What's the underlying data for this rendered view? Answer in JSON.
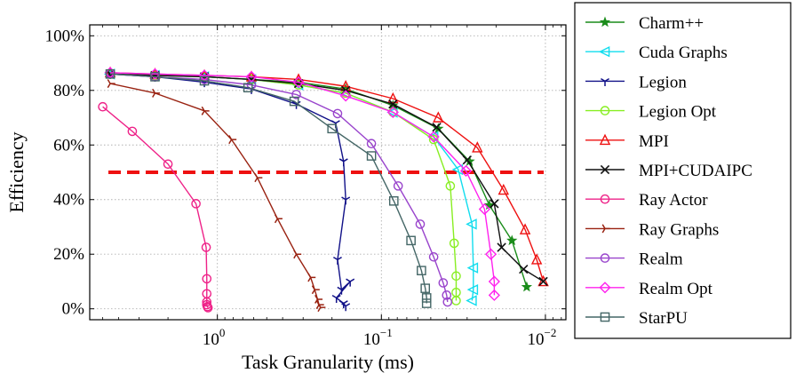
{
  "chart_data": {
    "type": "line",
    "title": "",
    "xlabel": "Task Granularity (ms)",
    "ylabel": "Efficiency",
    "xscale": "log",
    "x_reversed": true,
    "xlim": [
      6.0,
      0.0075
    ],
    "ylim": [
      -4,
      104
    ],
    "grid": true,
    "legend_position": "outside-right",
    "x_ticks": [
      {
        "value": 1,
        "base": "10",
        "exp": "0"
      },
      {
        "value": 0.1,
        "base": "10",
        "exp": "−1"
      },
      {
        "value": 0.01,
        "base": "10",
        "exp": "−2"
      }
    ],
    "y_ticks": [
      {
        "value": 0,
        "label": "0%"
      },
      {
        "value": 20,
        "label": "20%"
      },
      {
        "value": 40,
        "label": "40%"
      },
      {
        "value": 60,
        "label": "60%"
      },
      {
        "value": 80,
        "label": "80%"
      },
      {
        "value": 100,
        "label": "100%"
      }
    ],
    "threshold": {
      "value": 50,
      "color": "#ee1111"
    },
    "series": [
      {
        "name": "Charm++",
        "color": "#1a8c1a",
        "marker": "star",
        "x": [
          4.5,
          2.4,
          1.2,
          0.62,
          0.32,
          0.165,
          0.085,
          0.045,
          0.029,
          0.022,
          0.016,
          0.013
        ],
        "y": [
          86,
          85.5,
          85,
          84,
          83,
          80.5,
          74.5,
          66,
          54,
          38,
          25,
          8
        ]
      },
      {
        "name": "Cuda Graphs",
        "color": "#11ddee",
        "marker": "triangle-left",
        "x": [
          4.5,
          2.4,
          1.2,
          0.62,
          0.32,
          0.165,
          0.085,
          0.048,
          0.034,
          0.028,
          0.0275,
          0.0275,
          0.028
        ],
        "y": [
          86,
          85.5,
          85,
          84,
          82,
          79,
          72,
          63,
          51,
          31,
          15,
          7,
          3
        ]
      },
      {
        "name": "Legion",
        "color": "#111188",
        "marker": "tri-down",
        "x": [
          4.5,
          2.4,
          1.2,
          0.62,
          0.33,
          0.19,
          0.17,
          0.165,
          0.185,
          0.175,
          0.155,
          0.188,
          0.17,
          0.165
        ],
        "y": [
          86,
          85,
          83,
          80.5,
          75,
          68,
          54,
          40,
          18,
          7,
          10,
          4,
          2,
          1
        ]
      },
      {
        "name": "Legion Opt",
        "color": "#88ee22",
        "marker": "circle",
        "x": [
          4.5,
          2.4,
          1.2,
          0.62,
          0.32,
          0.165,
          0.085,
          0.048,
          0.038,
          0.036,
          0.035,
          0.035,
          0.035
        ],
        "y": [
          86,
          85.5,
          85,
          84,
          82,
          79,
          72,
          62,
          45,
          24,
          12,
          6,
          3
        ]
      },
      {
        "name": "MPI",
        "color": "#ee1111",
        "marker": "triangle-up",
        "x": [
          4.5,
          2.4,
          1.2,
          0.62,
          0.32,
          0.165,
          0.085,
          0.045,
          0.026,
          0.018,
          0.0133,
          0.0113,
          0.0103
        ],
        "y": [
          86.5,
          86,
          85.5,
          85,
          84,
          81.5,
          77,
          70,
          59,
          43.5,
          29,
          18,
          10
        ]
      },
      {
        "name": "MPI+CUDAIPC",
        "color": "#111111",
        "marker": "x",
        "x": [
          4.5,
          2.4,
          1.2,
          0.62,
          0.32,
          0.165,
          0.085,
          0.046,
          0.03,
          0.0205,
          0.0185,
          0.0136,
          0.0103
        ],
        "y": [
          86,
          85.5,
          85,
          84,
          82.5,
          80,
          75,
          66.5,
          54.5,
          38.5,
          22.5,
          14.5,
          10
        ]
      },
      {
        "name": "Ray Actor",
        "color": "#ee2288",
        "marker": "circle",
        "x": [
          5.0,
          3.3,
          2.0,
          1.35,
          1.17,
          1.16,
          1.16,
          1.16,
          1.16,
          1.15,
          1.14
        ],
        "y": [
          74,
          65,
          53,
          38.5,
          22.5,
          11,
          5.5,
          2.5,
          1.5,
          0.8,
          0.4
        ]
      },
      {
        "name": "Ray Graphs",
        "color": "#992211",
        "marker": "tri-right",
        "x": [
          4.5,
          2.4,
          1.2,
          0.82,
          0.57,
          0.43,
          0.33,
          0.27,
          0.255,
          0.245,
          0.24,
          0.235
        ],
        "y": [
          82.5,
          79,
          72.5,
          62,
          48,
          33,
          20,
          11.5,
          7,
          3.5,
          1.5,
          0.5
        ]
      },
      {
        "name": "Realm",
        "color": "#9944cc",
        "marker": "circle",
        "x": [
          4.5,
          2.4,
          1.2,
          0.62,
          0.33,
          0.185,
          0.115,
          0.079,
          0.058,
          0.048,
          0.042,
          0.04,
          0.0395
        ],
        "y": [
          86,
          85,
          84,
          82,
          78.5,
          71.5,
          60.5,
          45,
          31,
          19,
          9.5,
          5,
          2.5
        ]
      },
      {
        "name": "Realm Opt",
        "color": "#ff22ee",
        "marker": "diamond",
        "x": [
          4.5,
          2.4,
          1.2,
          0.62,
          0.32,
          0.165,
          0.085,
          0.048,
          0.0305,
          0.0235,
          0.0215,
          0.0205,
          0.0205
        ],
        "y": [
          86.5,
          86,
          85.5,
          85,
          83,
          78,
          72,
          63,
          50.5,
          36.5,
          20,
          10,
          5
        ]
      },
      {
        "name": "StarPU",
        "color": "#446666",
        "marker": "square",
        "x": [
          4.5,
          2.4,
          1.2,
          0.65,
          0.34,
          0.2,
          0.115,
          0.084,
          0.066,
          0.057,
          0.054,
          0.053,
          0.053
        ],
        "y": [
          86,
          85,
          83.5,
          81,
          76,
          66,
          56,
          39.5,
          25,
          14,
          7.5,
          4,
          2
        ]
      }
    ]
  }
}
